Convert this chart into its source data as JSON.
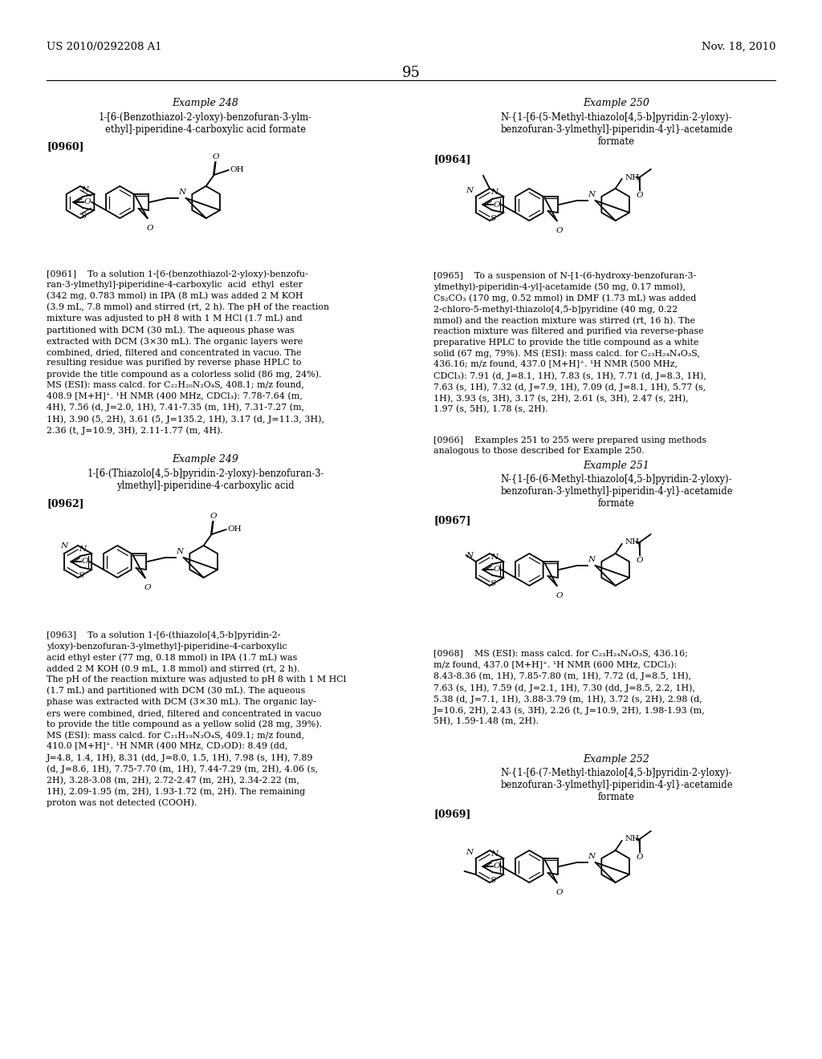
{
  "bg": "#ffffff",
  "tc": "#000000",
  "header_left": "US 2010/0292208 A1",
  "header_right": "Nov. 18, 2010",
  "page_num": "95"
}
